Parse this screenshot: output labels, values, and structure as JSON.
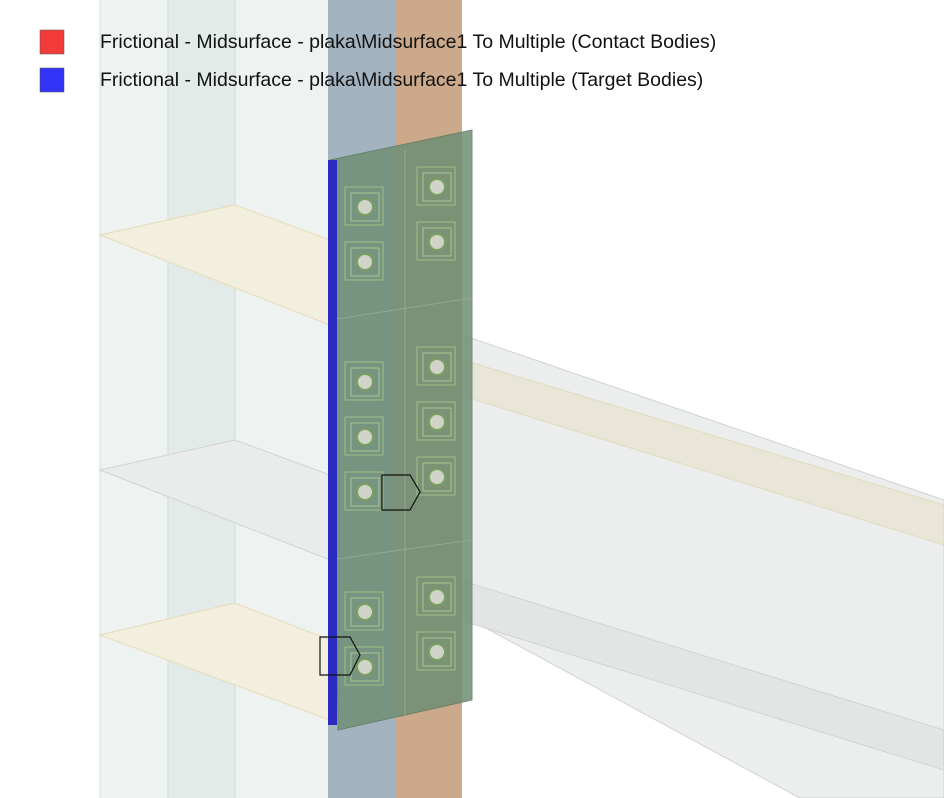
{
  "legend": {
    "items": [
      {
        "label": "Frictional - Midsurface - plaka\\Midsurface1 To Multiple (Contact Bodies)",
        "color": "#f23b3b"
      },
      {
        "label": "Frictional - Midsurface - plaka\\Midsurface1 To Multiple (Target Bodies)",
        "color": "#3333f5"
      }
    ]
  }
}
